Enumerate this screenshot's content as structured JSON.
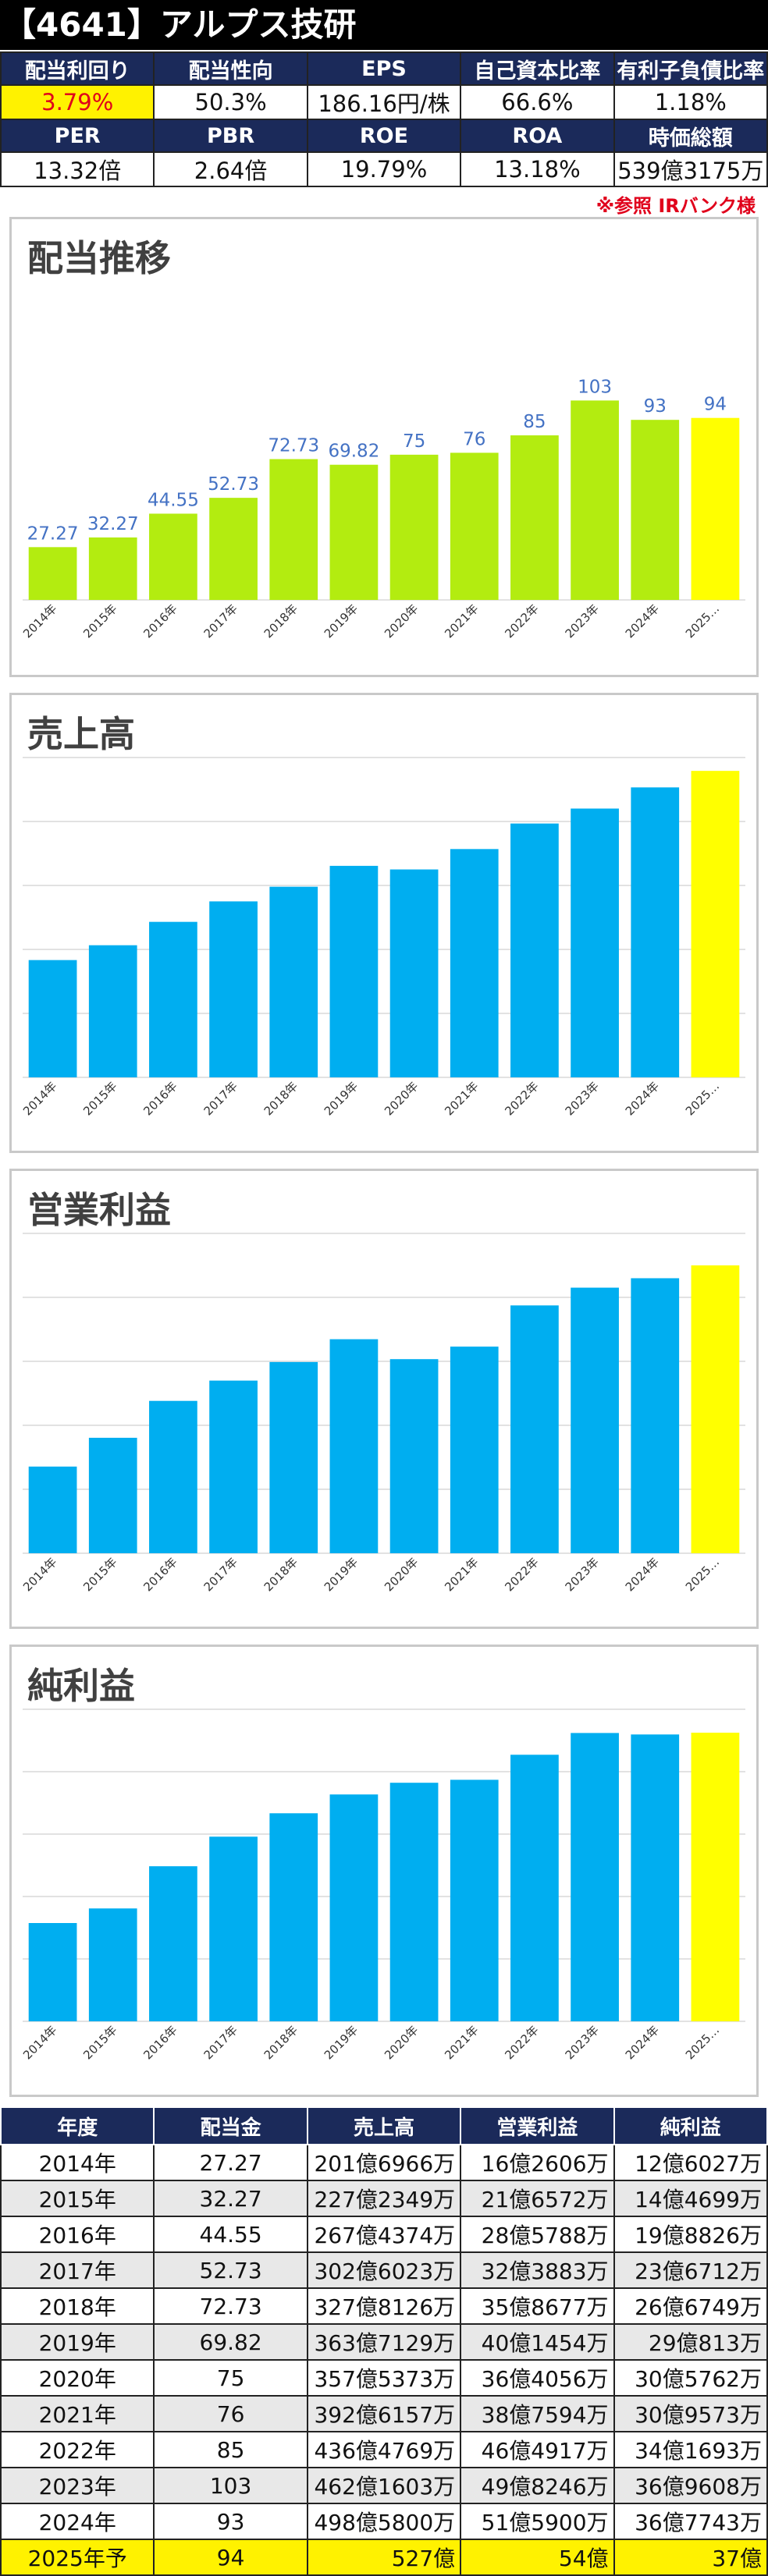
{
  "header": {
    "title": "【4641】アルプス技研"
  },
  "metrics": {
    "row1": [
      {
        "label": "配当利回り",
        "value": "3.79%",
        "highlight": true
      },
      {
        "label": "配当性向",
        "value": "50.3%"
      },
      {
        "label": "EPS",
        "value": "186.16円/株"
      },
      {
        "label": "自己資本比率",
        "value": "66.6%"
      },
      {
        "label": "有利子負債比率",
        "value": "1.18%"
      }
    ],
    "row2": [
      {
        "label": "PER",
        "value": "13.32倍"
      },
      {
        "label": "PBR",
        "value": "2.64倍"
      },
      {
        "label": "ROE",
        "value": "19.79%"
      },
      {
        "label": "ROA",
        "value": "13.18%"
      },
      {
        "label": "時価総額",
        "value": "539億3175万"
      }
    ],
    "reference_note": "※参照 IRバンク様"
  },
  "colors": {
    "dividend_bar": "#b3ec10",
    "bar": "#00aef0",
    "forecast_bar": "#ffff00",
    "label_color": "#4472c4",
    "gridline": "#d9d9d9",
    "header_bg": "#1b2a5a"
  },
  "chart_data": [
    {
      "type": "bar",
      "title": "配当推移",
      "categories": [
        "2014年",
        "2015年",
        "2016年",
        "2017年",
        "2018年",
        "2019年",
        "2020年",
        "2021年",
        "2022年",
        "2023年",
        "2024年",
        "2025…"
      ],
      "values": [
        27.27,
        32.27,
        44.55,
        52.73,
        72.73,
        69.82,
        75,
        76,
        85,
        103,
        93,
        94
      ],
      "value_labels": [
        "27.27",
        "32.27",
        "44.55",
        "52.73",
        "72.73",
        "69.82",
        "75",
        "76",
        "85",
        "103",
        "93",
        "94"
      ],
      "ylim": [
        0,
        110
      ],
      "grid": false,
      "forecast_index": 11
    },
    {
      "type": "bar",
      "title": "売上高",
      "categories": [
        "2014年",
        "2015年",
        "2016年",
        "2017年",
        "2018年",
        "2019年",
        "2020年",
        "2021年",
        "2022年",
        "2023年",
        "2024年",
        "2025…"
      ],
      "values": [
        201.7,
        227.2,
        267.4,
        302.6,
        327.8,
        363.7,
        357.5,
        392.6,
        436.5,
        462.2,
        498.6,
        527
      ],
      "unit": "億円",
      "ylim": [
        0,
        550
      ],
      "grid": true,
      "forecast_index": 11
    },
    {
      "type": "bar",
      "title": "営業利益",
      "categories": [
        "2014年",
        "2015年",
        "2016年",
        "2017年",
        "2018年",
        "2019年",
        "2020年",
        "2021年",
        "2022年",
        "2023年",
        "2024年",
        "2025…"
      ],
      "values": [
        16.26,
        21.66,
        28.58,
        32.39,
        35.87,
        40.15,
        36.41,
        38.76,
        46.49,
        49.82,
        51.59,
        54
      ],
      "unit": "億円",
      "ylim": [
        0,
        60
      ],
      "grid": true,
      "forecast_index": 11
    },
    {
      "type": "bar",
      "title": "純利益",
      "categories": [
        "2014年",
        "2015年",
        "2016年",
        "2017年",
        "2018年",
        "2019年",
        "2020年",
        "2021年",
        "2022年",
        "2023年",
        "2024年",
        "2025…"
      ],
      "values": [
        12.6,
        14.47,
        19.88,
        23.67,
        26.67,
        29.08,
        30.58,
        30.96,
        34.17,
        36.96,
        36.77,
        37
      ],
      "unit": "億円",
      "ylim": [
        0,
        40
      ],
      "grid": true,
      "forecast_index": 11
    }
  ],
  "history_table": {
    "headers": [
      "年度",
      "配当金",
      "売上高",
      "営業利益",
      "純利益"
    ],
    "rows": [
      [
        "2014年",
        "27.27",
        "201億6966万",
        "16億2606万",
        "12億6027万"
      ],
      [
        "2015年",
        "32.27",
        "227億2349万",
        "21億6572万",
        "14億4699万"
      ],
      [
        "2016年",
        "44.55",
        "267億4374万",
        "28億5788万",
        "19億8826万"
      ],
      [
        "2017年",
        "52.73",
        "302億6023万",
        "32億3883万",
        "23億6712万"
      ],
      [
        "2018年",
        "72.73",
        "327億8126万",
        "35億8677万",
        "26億6749万"
      ],
      [
        "2019年",
        "69.82",
        "363億7129万",
        "40億1454万",
        "29億813万"
      ],
      [
        "2020年",
        "75",
        "357億5373万",
        "36億4056万",
        "30億5762万"
      ],
      [
        "2021年",
        "76",
        "392億6157万",
        "38億7594万",
        "30億9573万"
      ],
      [
        "2022年",
        "85",
        "436億4769万",
        "46億4917万",
        "34億1693万"
      ],
      [
        "2023年",
        "103",
        "462億1603万",
        "49億8246万",
        "36億9608万"
      ],
      [
        "2024年",
        "93",
        "498億5800万",
        "51億5900万",
        "36億7743万"
      ],
      [
        "2025年予",
        "94",
        "527億",
        "54億",
        "37億"
      ]
    ]
  }
}
